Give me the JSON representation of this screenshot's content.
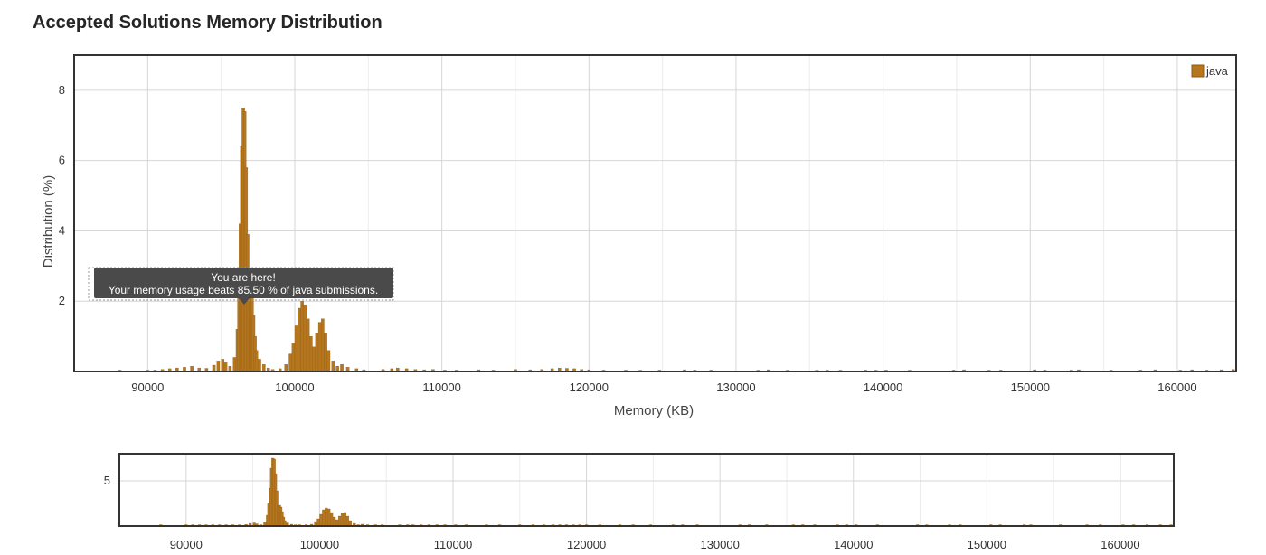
{
  "page": {
    "title": "Accepted Solutions Memory Distribution"
  },
  "colors": {
    "bar": "#b5761e",
    "bar_stroke": "#8f5a12",
    "grid": "#d6d6d6",
    "frame": "#333333",
    "tooltip_bg": "#4a4a4a"
  },
  "chart_data": [
    {
      "type": "bar",
      "role": "main",
      "title": "",
      "xlabel": "Memory (KB)",
      "ylabel": "Distribution (%)",
      "xlim": [
        85000,
        164000
      ],
      "ylim": [
        0,
        9
      ],
      "xticks": [
        "90000",
        "100000",
        "110000",
        "120000",
        "130000",
        "140000",
        "150000",
        "160000"
      ],
      "yticks": [
        "2",
        "4",
        "6",
        "8"
      ],
      "grid": true,
      "legend": {
        "position": "top-right",
        "entries": [
          "java"
        ]
      },
      "series": [
        {
          "name": "java",
          "x": [
            88100,
            90000,
            90500,
            91000,
            91500,
            92000,
            92500,
            93000,
            93500,
            94000,
            94500,
            94800,
            95100,
            95300,
            95600,
            95900,
            96100,
            96200,
            96300,
            96400,
            96500,
            96600,
            96700,
            96800,
            96900,
            97000,
            97100,
            97200,
            97300,
            97400,
            97600,
            97900,
            98200,
            98500,
            99000,
            99400,
            99700,
            99900,
            100100,
            100300,
            100500,
            100700,
            100900,
            101100,
            101300,
            101500,
            101700,
            101900,
            102100,
            102300,
            102600,
            102900,
            103200,
            103600,
            104200,
            104700,
            106000,
            106600,
            107000,
            107600,
            108200,
            108800,
            109400,
            110200,
            111000,
            112500,
            113500,
            115000,
            116000,
            116800,
            117500,
            118000,
            118500,
            119000,
            119500,
            120000,
            121000,
            122500,
            123500,
            124800,
            126500,
            127200,
            128300,
            131500,
            132200,
            133500,
            135500,
            136200,
            137100,
            138800,
            139500,
            140200,
            141800,
            144800,
            145500,
            147200,
            148000,
            150300,
            151000,
            152800,
            153300,
            155500,
            157500,
            158500,
            160200,
            161000,
            162000,
            163000,
            163800
          ],
          "values": [
            0.04,
            0.03,
            0.04,
            0.06,
            0.08,
            0.1,
            0.12,
            0.15,
            0.1,
            0.09,
            0.18,
            0.3,
            0.35,
            0.25,
            0.15,
            0.4,
            1.2,
            2.5,
            4.2,
            6.4,
            7.5,
            7.4,
            5.8,
            3.9,
            2.2,
            2.3,
            2.1,
            1.6,
            1.0,
            0.6,
            0.35,
            0.2,
            0.1,
            0.06,
            0.08,
            0.2,
            0.5,
            0.8,
            1.3,
            1.8,
            2.0,
            1.9,
            1.5,
            1.0,
            0.7,
            1.1,
            1.4,
            1.5,
            1.1,
            0.6,
            0.3,
            0.15,
            0.2,
            0.12,
            0.08,
            0.05,
            0.06,
            0.08,
            0.1,
            0.08,
            0.06,
            0.05,
            0.06,
            0.04,
            0.04,
            0.05,
            0.04,
            0.06,
            0.05,
            0.06,
            0.08,
            0.1,
            0.09,
            0.08,
            0.06,
            0.05,
            0.04,
            0.04,
            0.03,
            0.04,
            0.05,
            0.04,
            0.04,
            0.03,
            0.05,
            0.03,
            0.03,
            0.04,
            0.03,
            0.04,
            0.03,
            0.04,
            0.03,
            0.04,
            0.05,
            0.03,
            0.04,
            0.05,
            0.04,
            0.04,
            0.05,
            0.03,
            0.04,
            0.05,
            0.04,
            0.05,
            0.04,
            0.05,
            0.06
          ]
        }
      ],
      "annotations": [
        {
          "line1": "You are here!",
          "line2": "Your memory usage beats 85.50 % of java submissions.",
          "x": 96500,
          "y": 2.0
        }
      ]
    },
    {
      "type": "bar",
      "role": "navigator",
      "xlim": [
        85000,
        164000
      ],
      "ylim": [
        0,
        8
      ],
      "xticks": [
        "90000",
        "100000",
        "110000",
        "120000",
        "130000",
        "140000",
        "150000",
        "160000"
      ],
      "yticks": [
        "5"
      ],
      "grid": true
    }
  ]
}
